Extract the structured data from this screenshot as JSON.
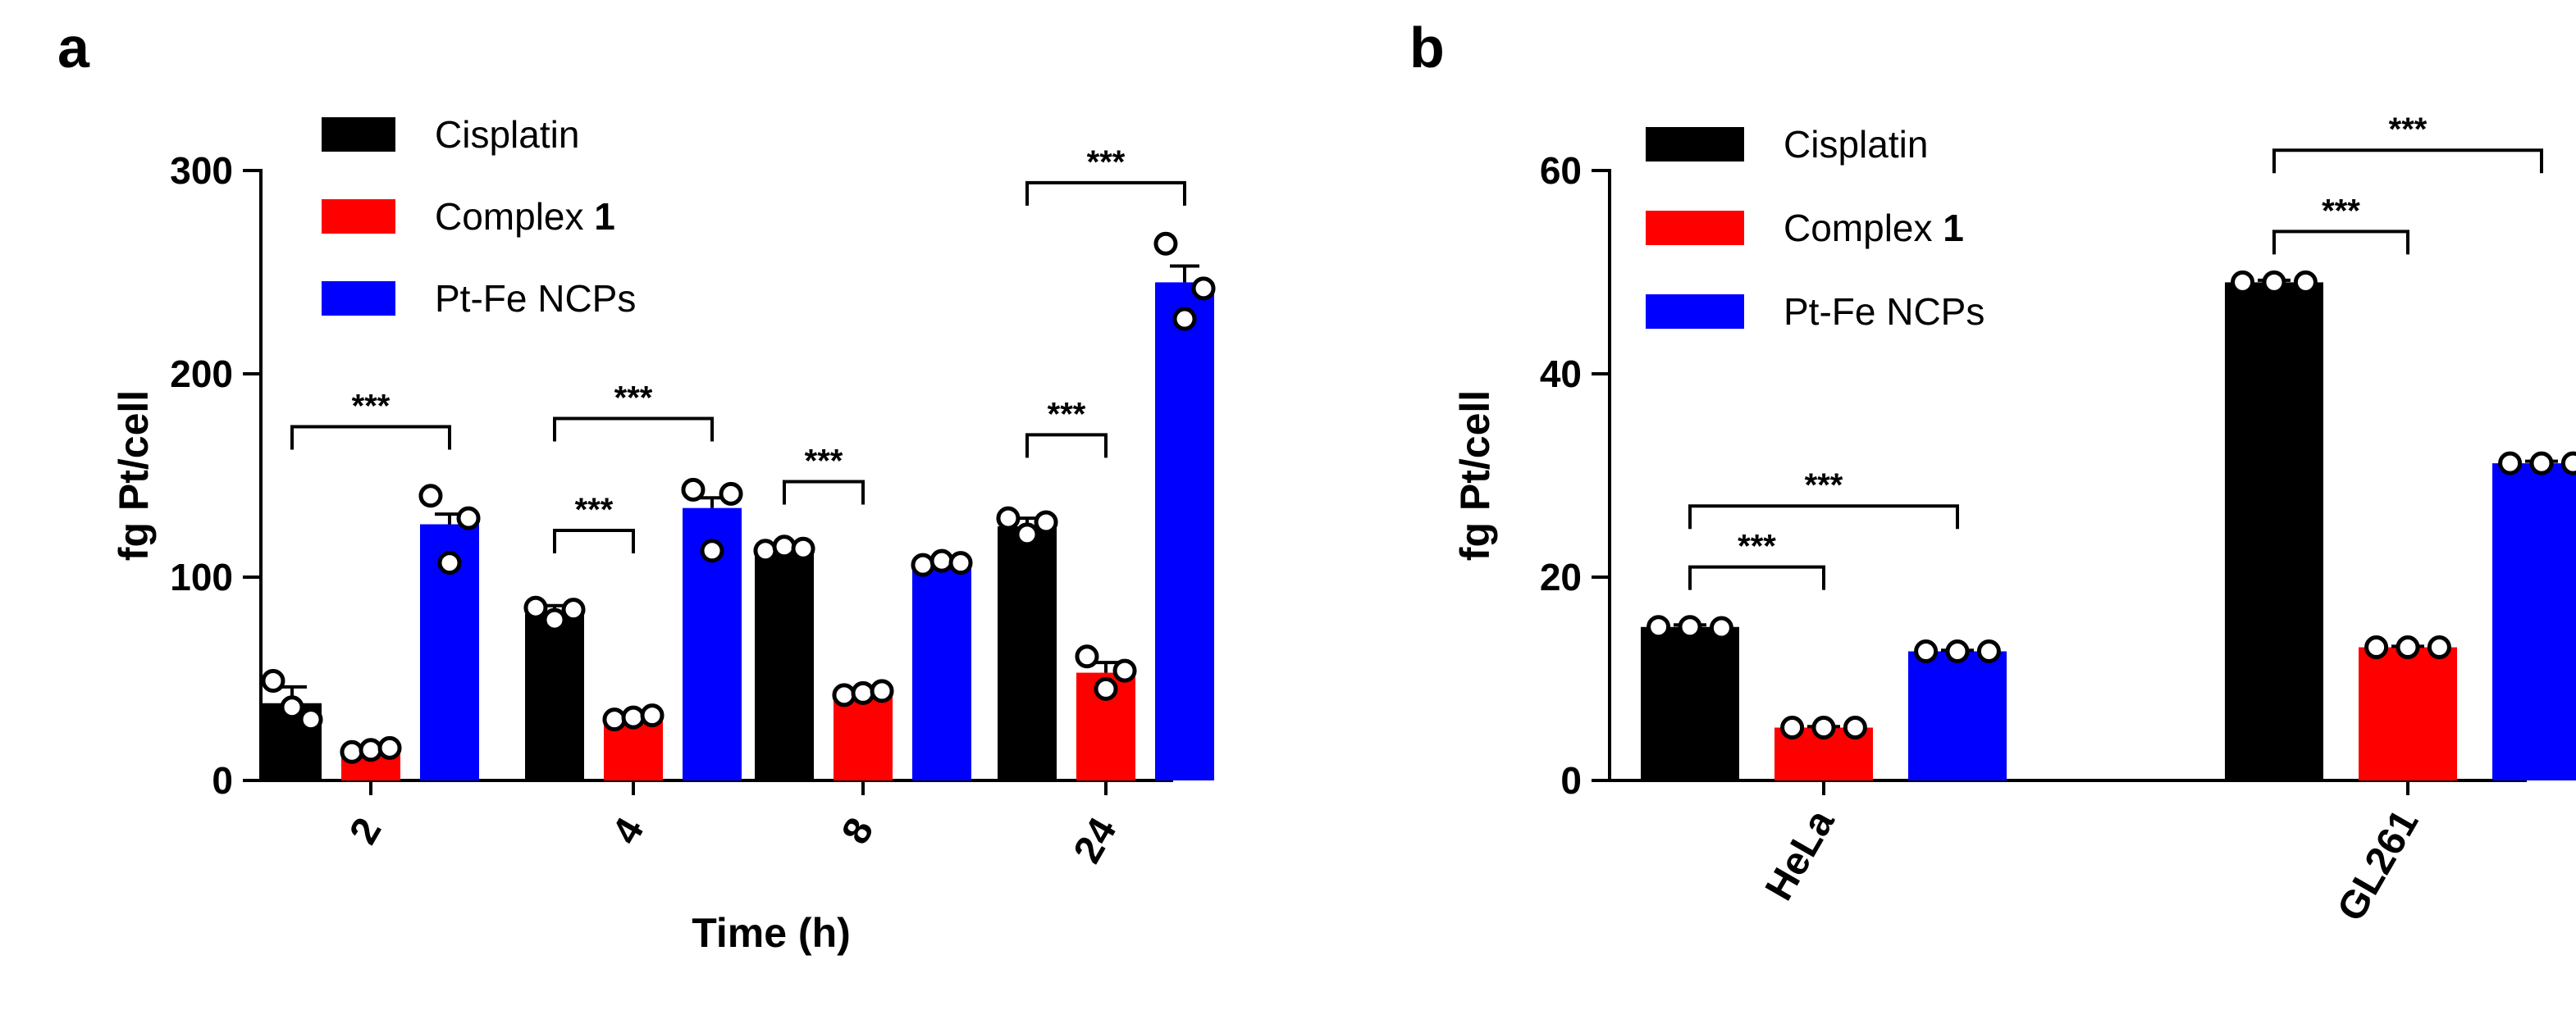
{
  "chart_data": [
    {
      "panel": "a",
      "type": "bar",
      "xlabel": "Time (h)",
      "ylabel": "fg Pt/cell",
      "ylim": [
        0,
        300
      ],
      "yticks": [
        0,
        100,
        200,
        300
      ],
      "categories": [
        "2",
        "4",
        "8",
        "24"
      ],
      "series": [
        {
          "name": "Cisplatin",
          "color": "#000000",
          "values": [
            38,
            82,
            114,
            125
          ],
          "errors": [
            8,
            4,
            1,
            4
          ],
          "points": [
            [
              49,
              36,
              30
            ],
            [
              85,
              79,
              84
            ],
            [
              113,
              115,
              114
            ],
            [
              129,
              121,
              127
            ]
          ]
        },
        {
          "name": "Complex 1",
          "color": "#ff0000",
          "values": [
            15,
            31,
            43,
            53
          ],
          "errors": [
            1,
            1,
            1,
            5
          ],
          "points": [
            [
              14,
              15,
              16
            ],
            [
              30,
              31,
              32
            ],
            [
              42,
              43,
              44
            ],
            [
              61,
              45,
              54
            ]
          ]
        },
        {
          "name": "Pt-Fe NCPs",
          "color": "#0000ff",
          "values": [
            126,
            134,
            107,
            245
          ],
          "errors": [
            5,
            5,
            1,
            8
          ],
          "points": [
            [
              140,
              107,
              129
            ],
            [
              143,
              113,
              141
            ],
            [
              106,
              108,
              107
            ],
            [
              264,
              227,
              242
            ]
          ]
        }
      ],
      "legend": [
        {
          "label": "Cisplatin",
          "suffix": ""
        },
        {
          "label": "Complex ",
          "suffix": "1"
        },
        {
          "label": "Pt-Fe NCPs",
          "suffix": ""
        }
      ],
      "significance": [
        {
          "category": 0,
          "from_series": 0,
          "to_series": 2,
          "y": 174,
          "label": "***"
        },
        {
          "category": 1,
          "from_series": 0,
          "to_series": 1,
          "y": 123,
          "label": "***"
        },
        {
          "category": 1,
          "from_series": 0,
          "to_series": 2,
          "y": 178,
          "label": "***"
        },
        {
          "category": 2,
          "from_series": 0,
          "to_series": 1,
          "y": 147,
          "label": "***"
        },
        {
          "category": 3,
          "from_series": 0,
          "to_series": 1,
          "y": 170,
          "label": "***"
        },
        {
          "category": 3,
          "from_series": 0,
          "to_series": 2,
          "y": 294,
          "label": "***"
        }
      ]
    },
    {
      "panel": "b",
      "type": "bar",
      "xlabel": "",
      "ylabel": "fg Pt/cell",
      "ylim": [
        0,
        60
      ],
      "yticks": [
        0,
        20,
        40,
        60
      ],
      "categories": [
        "HeLa",
        "GL261"
      ],
      "series": [
        {
          "name": "Cisplatin",
          "color": "#000000",
          "values": [
            15.1,
            49.0
          ],
          "errors": [
            0.2,
            0.2
          ],
          "points": [
            [
              15.1,
              15.1,
              15.0
            ],
            [
              49.0,
              49.0,
              49.0
            ]
          ]
        },
        {
          "name": "Complex 1",
          "color": "#ff0000",
          "values": [
            5.2,
            13.1
          ],
          "errors": [
            0.1,
            0.1
          ],
          "points": [
            [
              5.2,
              5.2,
              5.2
            ],
            [
              13.1,
              13.1,
              13.1
            ]
          ]
        },
        {
          "name": "Pt-Fe NCPs",
          "color": "#0000ff",
          "values": [
            12.7,
            31.2
          ],
          "errors": [
            0.1,
            0.2
          ],
          "points": [
            [
              12.7,
              12.7,
              12.7
            ],
            [
              31.2,
              31.2,
              31.2
            ]
          ]
        }
      ],
      "legend": [
        {
          "label": "Cisplatin",
          "suffix": ""
        },
        {
          "label": "Complex ",
          "suffix": "1"
        },
        {
          "label": "Pt-Fe NCPs",
          "suffix": ""
        }
      ],
      "significance": [
        {
          "category": 0,
          "from_series": 0,
          "to_series": 1,
          "y": 21,
          "label": "***"
        },
        {
          "category": 0,
          "from_series": 0,
          "to_series": 2,
          "y": 27,
          "label": "***"
        },
        {
          "category": 1,
          "from_series": 0,
          "to_series": 1,
          "y": 54,
          "label": "***"
        },
        {
          "category": 1,
          "from_series": 0,
          "to_series": 2,
          "y": 62,
          "label": "***"
        }
      ]
    }
  ],
  "panel_labels": [
    "a",
    "b"
  ]
}
